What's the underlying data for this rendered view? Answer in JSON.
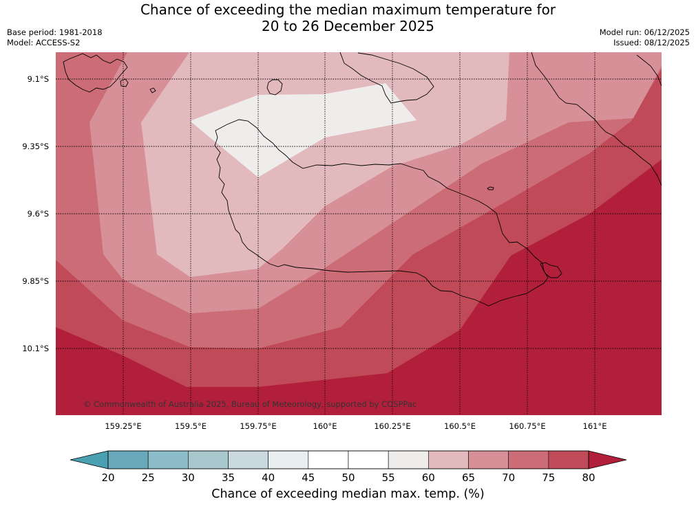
{
  "title": {
    "line1": "Chance of exceeding the median maximum temperature for",
    "line2": "20 to 26 December 2025"
  },
  "meta_left": {
    "base_period": "Base period: 1981-2018",
    "model": "Model: ACCESS-S2"
  },
  "meta_right": {
    "model_run": "Model run: 06/12/2025",
    "issued": "Issued: 08/12/2025"
  },
  "map": {
    "lat_labels": [
      "9.1°S",
      "9.35°S",
      "9.6°S",
      "9.85°S",
      "10.1°S"
    ],
    "lon_labels": [
      "159.25°E",
      "159.5°E",
      "159.75°E",
      "160°E",
      "160.25°E",
      "160.5°E",
      "160.75°E",
      "161°E"
    ],
    "copyright": "© Commonwealth of Australia 2025, Bureau of Meteorology, supported by COSPPac"
  },
  "colorbar": {
    "ticks": [
      "20",
      "25",
      "30",
      "35",
      "40",
      "45",
      "50",
      "55",
      "60",
      "65",
      "70",
      "75",
      "80"
    ],
    "colors": [
      "#6aa9bc",
      "#8bbcc8",
      "#a8c8ce",
      "#c9d9dd",
      "#e9eff1",
      "#ffffff",
      "#ffffff",
      "#efedec",
      "#e2b9bd",
      "#d78f98",
      "#cc6c76",
      "#c04a57"
    ],
    "under_color": "#4a9fb0",
    "over_color": "#b21f3b",
    "label": "Chance of exceeding median max. temp. (%)"
  },
  "levels": {
    "c80": "#b21f3b",
    "c75": "#c04a57",
    "c70": "#cc6c76",
    "c65": "#d78f98",
    "c60": "#e2b9bd",
    "c55": "#efedec"
  }
}
